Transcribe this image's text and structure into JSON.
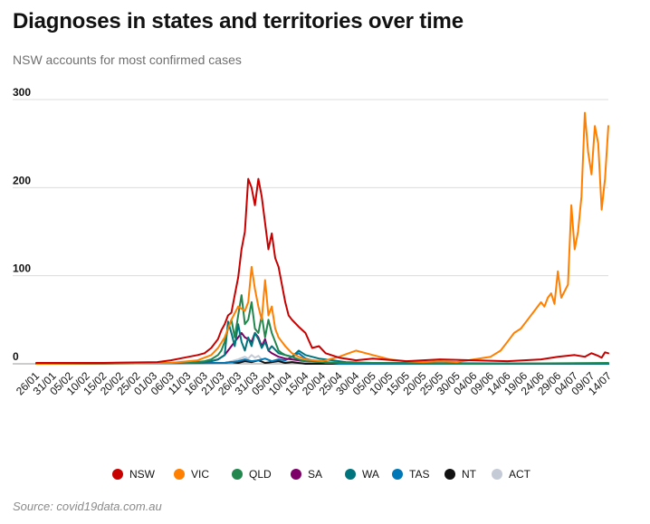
{
  "header": {
    "title": "Diagnoses in states and territories over time",
    "subtitle": "NSW accounts for most confirmed cases"
  },
  "footer": {
    "source": "Source: covid19data.com.au"
  },
  "chart_data": {
    "type": "line",
    "title": "Diagnoses in states and territories over time",
    "subtitle": "NSW accounts for most confirmed cases",
    "xlabel": "",
    "ylabel": "",
    "ylim": [
      0,
      300
    ],
    "yticks": [
      0,
      100,
      200,
      300
    ],
    "x_tick_labels": [
      "26/01",
      "31/01",
      "05/02",
      "10/02",
      "15/02",
      "20/02",
      "25/02",
      "01/03",
      "06/03",
      "11/03",
      "16/03",
      "21/03",
      "26/03",
      "31/03",
      "05/04",
      "10/04",
      "15/04",
      "20/04",
      "25/04",
      "30/04",
      "05/05",
      "10/05",
      "15/05",
      "20/05",
      "25/05",
      "30/05",
      "04/06",
      "09/06",
      "14/06",
      "19/06",
      "24/06",
      "29/06",
      "04/07",
      "09/07",
      "14/07"
    ],
    "legend_position": "bottom",
    "x_day_range": [
      0,
      170
    ],
    "series": [
      {
        "name": "NSW",
        "color": "#c70000",
        "x": [
          0,
          20,
          36,
          40,
          44,
          48,
          50,
          52,
          54,
          55,
          56,
          57,
          58,
          59,
          60,
          61,
          62,
          63,
          64,
          65,
          66,
          67,
          68,
          69,
          70,
          71,
          72,
          73,
          74,
          75,
          76,
          78,
          80,
          82,
          84,
          86,
          90,
          95,
          100,
          110,
          120,
          130,
          140,
          150,
          155,
          160,
          163,
          165,
          167,
          168,
          169,
          170
        ],
        "values": [
          1,
          1,
          2,
          4,
          7,
          10,
          12,
          18,
          28,
          38,
          45,
          55,
          58,
          78,
          98,
          130,
          150,
          210,
          200,
          180,
          210,
          190,
          160,
          130,
          148,
          120,
          110,
          90,
          70,
          55,
          50,
          42,
          35,
          18,
          20,
          12,
          7,
          4,
          6,
          3,
          5,
          4,
          3,
          5,
          8,
          10,
          8,
          12,
          9,
          7,
          13,
          12
        ]
      },
      {
        "name": "VIC",
        "color": "#ff7f00",
        "x": [
          0,
          40,
          48,
          52,
          54,
          56,
          58,
          60,
          62,
          63,
          64,
          65,
          66,
          67,
          68,
          69,
          70,
          71,
          72,
          74,
          76,
          78,
          80,
          85,
          90,
          95,
          100,
          105,
          110,
          115,
          120,
          125,
          130,
          135,
          138,
          140,
          142,
          144,
          146,
          148,
          150,
          151,
          152,
          153,
          154,
          155,
          156,
          158,
          159,
          160,
          161,
          162,
          163,
          164,
          165,
          166,
          167,
          168,
          169,
          170
        ],
        "values": [
          0,
          1,
          4,
          10,
          18,
          30,
          50,
          65,
          60,
          70,
          110,
          85,
          65,
          50,
          95,
          55,
          65,
          40,
          30,
          20,
          12,
          8,
          5,
          3,
          8,
          15,
          10,
          5,
          3,
          2,
          3,
          2,
          5,
          8,
          15,
          25,
          35,
          40,
          50,
          60,
          70,
          65,
          75,
          80,
          68,
          105,
          75,
          90,
          180,
          130,
          150,
          190,
          285,
          240,
          215,
          270,
          250,
          175,
          210,
          270
        ]
      },
      {
        "name": "QLD",
        "color": "#22874d",
        "x": [
          0,
          45,
          50,
          52,
          54,
          55,
          56,
          57,
          58,
          59,
          60,
          61,
          62,
          63,
          64,
          65,
          66,
          67,
          68,
          69,
          70,
          71,
          72,
          73,
          74,
          76,
          78,
          80,
          85,
          90,
          100,
          130,
          170
        ],
        "values": [
          0,
          1,
          3,
          5,
          10,
          15,
          25,
          40,
          50,
          30,
          55,
          78,
          45,
          50,
          70,
          40,
          35,
          55,
          30,
          50,
          35,
          25,
          15,
          12,
          10,
          8,
          5,
          3,
          2,
          1,
          1,
          0,
          1
        ]
      },
      {
        "name": "SA",
        "color": "#7d0068",
        "x": [
          0,
          48,
          52,
          54,
          56,
          57,
          58,
          59,
          60,
          61,
          62,
          63,
          64,
          65,
          66,
          67,
          68,
          69,
          70,
          72,
          74,
          76,
          80,
          90,
          170
        ],
        "values": [
          0,
          1,
          3,
          5,
          10,
          15,
          20,
          25,
          30,
          35,
          30,
          28,
          25,
          35,
          30,
          20,
          28,
          15,
          12,
          8,
          6,
          5,
          3,
          1,
          0
        ]
      },
      {
        "name": "WA",
        "color": "#00747c",
        "x": [
          0,
          48,
          52,
          54,
          56,
          57,
          58,
          59,
          60,
          61,
          62,
          63,
          64,
          65,
          66,
          67,
          68,
          69,
          70,
          72,
          74,
          76,
          78,
          80,
          84,
          88,
          92,
          100,
          170
        ],
        "values": [
          0,
          1,
          3,
          5,
          10,
          48,
          35,
          20,
          45,
          25,
          15,
          30,
          20,
          35,
          28,
          18,
          25,
          15,
          20,
          12,
          10,
          8,
          15,
          10,
          6,
          4,
          2,
          1,
          0
        ]
      },
      {
        "name": "TAS",
        "color": "#0077b6",
        "x": [
          0,
          56,
          58,
          60,
          62,
          64,
          66,
          68,
          70,
          72,
          74,
          76,
          78,
          80,
          82,
          84,
          86,
          88,
          90,
          170
        ],
        "values": [
          0,
          1,
          2,
          3,
          5,
          3,
          4,
          6,
          3,
          5,
          4,
          8,
          12,
          6,
          4,
          3,
          1,
          1,
          0,
          0
        ]
      },
      {
        "name": "NT",
        "color": "#121212",
        "x": [
          0,
          56,
          58,
          60,
          62,
          64,
          66,
          68,
          70,
          72,
          74,
          76,
          80,
          170
        ],
        "values": [
          0,
          1,
          2,
          1,
          3,
          2,
          4,
          1,
          2,
          3,
          1,
          2,
          0,
          0
        ]
      },
      {
        "name": "ACT",
        "color": "#c5cbd6",
        "x": [
          0,
          56,
          58,
          60,
          62,
          63,
          64,
          65,
          66,
          67,
          68,
          70,
          72,
          74,
          76,
          80,
          170
        ],
        "values": [
          0,
          1,
          3,
          5,
          8,
          6,
          10,
          7,
          9,
          5,
          6,
          3,
          4,
          2,
          2,
          1,
          0
        ]
      }
    ]
  }
}
